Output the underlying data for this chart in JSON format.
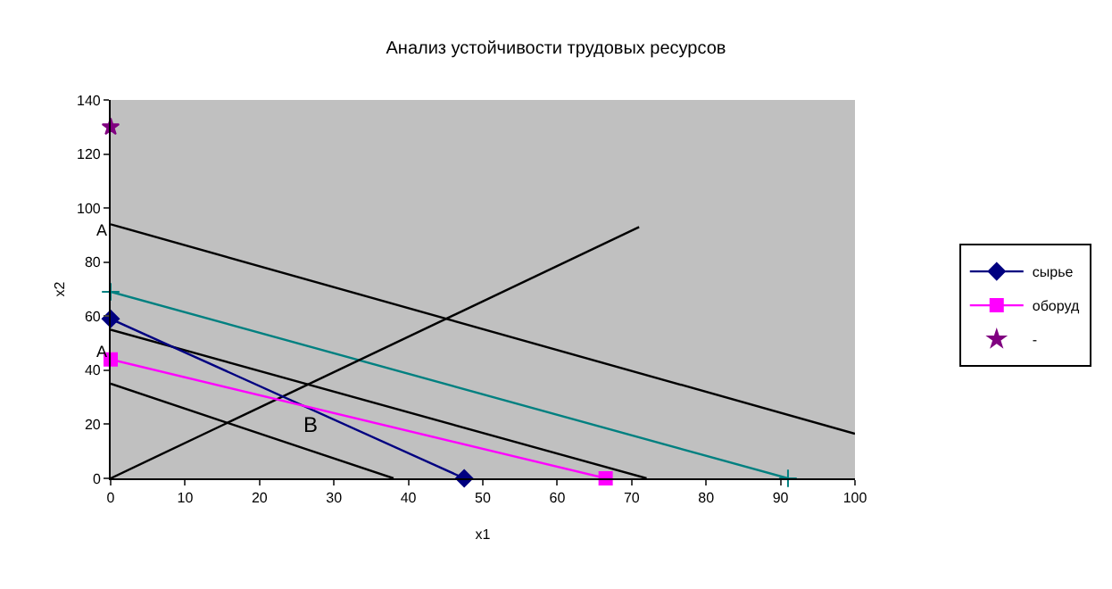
{
  "chart_data": {
    "type": "line",
    "title": "Анализ устойчивости трудовых ресурсов",
    "xlabel": "x1",
    "ylabel": "x2",
    "xlim": [
      0,
      100
    ],
    "xticks": [
      0,
      10,
      20,
      30,
      40,
      50,
      60,
      70,
      80,
      90,
      100
    ],
    "ylim": [
      0,
      140
    ],
    "yticks": [
      0,
      20,
      40,
      60,
      80,
      100,
      120,
      140
    ],
    "grid": false,
    "legend": "right",
    "series": [
      {
        "type": "line",
        "x": [
          0,
          100
        ],
        "values": [
          94,
          16.5
        ],
        "color": "#000000",
        "marker": "none"
      },
      {
        "type": "line",
        "x": [
          0,
          72
        ],
        "values": [
          55,
          0
        ],
        "color": "#000000",
        "marker": "none"
      },
      {
        "type": "line",
        "x": [
          0,
          38
        ],
        "values": [
          35,
          0
        ],
        "color": "#000000",
        "marker": "none"
      },
      {
        "type": "line",
        "x": [
          0,
          91
        ],
        "values": [
          69,
          0
        ],
        "color": "#008080",
        "marker": "cross"
      },
      {
        "type": "line",
        "x": [
          0,
          71
        ],
        "values": [
          0,
          93
        ],
        "color": "#000000",
        "marker": "none"
      },
      {
        "name": "сырье",
        "type": "line",
        "x": [
          0,
          47.5
        ],
        "values": [
          59,
          0
        ],
        "color": "#000080",
        "marker": "diamond"
      },
      {
        "name": "оборуд",
        "type": "line",
        "x": [
          0,
          66.5
        ],
        "values": [
          44,
          0
        ],
        "color": "#ff00ff",
        "marker": "square"
      },
      {
        "name": "-",
        "type": "scatter",
        "x": [
          0
        ],
        "values": [
          130
        ],
        "color": "#800080",
        "marker": "star"
      }
    ],
    "annotations": [
      {
        "text": "A",
        "x": 0,
        "y": 92
      },
      {
        "text": "A",
        "x": 0,
        "y": 47
      },
      "B"
    ]
  }
}
